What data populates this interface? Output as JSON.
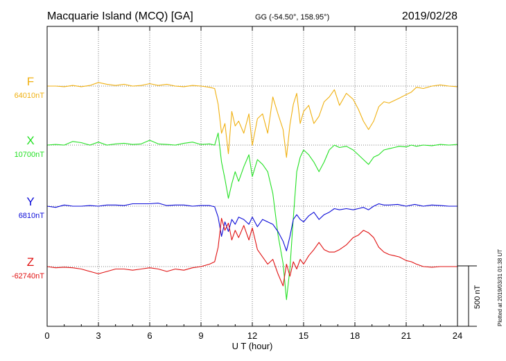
{
  "header": {
    "title": "Macquarie Island (MCQ)  [GA]",
    "coords": "GG (-54.50°, 158.95°)",
    "date": "2019/02/28"
  },
  "side_note": "Plotted at 2019/03/31 01:38 UT",
  "scale_bar": {
    "label": "500 nT",
    "nT": 500
  },
  "chart_data": {
    "type": "line",
    "title": "Macquarie Island (MCQ)  [GA]",
    "xlabel": "U T (hour)",
    "xlim": [
      0,
      24
    ],
    "xticks": [
      0,
      3,
      6,
      9,
      12,
      15,
      18,
      21,
      24
    ],
    "grid": true,
    "series": [
      {
        "name": "F",
        "baseline_label": "64010nT",
        "color": "#f0b010",
        "values": [
          [
            0,
            64010
          ],
          [
            0.5,
            64010
          ],
          [
            1,
            64005
          ],
          [
            1.5,
            64015
          ],
          [
            2,
            64005
          ],
          [
            2.5,
            64015
          ],
          [
            3,
            64040
          ],
          [
            3.5,
            64025
          ],
          [
            4,
            64015
          ],
          [
            4.5,
            64025
          ],
          [
            5,
            64010
          ],
          [
            5.5,
            64015
          ],
          [
            6,
            64030
          ],
          [
            6.5,
            64015
          ],
          [
            7,
            64025
          ],
          [
            7.5,
            64010
          ],
          [
            8,
            64005
          ],
          [
            8.5,
            64015
          ],
          [
            9,
            64010
          ],
          [
            9.5,
            64000
          ],
          [
            9.8,
            63990
          ],
          [
            10,
            63860
          ],
          [
            10.2,
            63620
          ],
          [
            10.4,
            63700
          ],
          [
            10.6,
            63450
          ],
          [
            10.8,
            63800
          ],
          [
            11,
            63680
          ],
          [
            11.2,
            63720
          ],
          [
            11.5,
            63620
          ],
          [
            11.8,
            63780
          ],
          [
            12,
            63520
          ],
          [
            12.3,
            63740
          ],
          [
            12.6,
            63780
          ],
          [
            12.9,
            63620
          ],
          [
            13.2,
            63920
          ],
          [
            13.5,
            63780
          ],
          [
            13.8,
            63650
          ],
          [
            14,
            63420
          ],
          [
            14.2,
            63690
          ],
          [
            14.4,
            63860
          ],
          [
            14.6,
            63950
          ],
          [
            14.8,
            63700
          ],
          [
            15,
            63800
          ],
          [
            15.3,
            63850
          ],
          [
            15.6,
            63700
          ],
          [
            15.9,
            63760
          ],
          [
            16.2,
            63880
          ],
          [
            16.5,
            63920
          ],
          [
            16.8,
            63980
          ],
          [
            17.1,
            63850
          ],
          [
            17.5,
            63950
          ],
          [
            17.9,
            63900
          ],
          [
            18.2,
            63820
          ],
          [
            18.5,
            63720
          ],
          [
            18.8,
            63650
          ],
          [
            19.1,
            63720
          ],
          [
            19.4,
            63840
          ],
          [
            19.7,
            63880
          ],
          [
            20,
            63870
          ],
          [
            20.3,
            63890
          ],
          [
            20.6,
            63910
          ],
          [
            21,
            63940
          ],
          [
            21.3,
            63960
          ],
          [
            21.6,
            64000
          ],
          [
            22,
            63990
          ],
          [
            22.5,
            64010
          ],
          [
            23,
            64020
          ],
          [
            23.5,
            64010
          ],
          [
            24,
            64005
          ]
        ]
      },
      {
        "name": "X",
        "baseline_label": "10700nT",
        "color": "#22e022",
        "values": [
          [
            0,
            10700
          ],
          [
            0.5,
            10705
          ],
          [
            1,
            10700
          ],
          [
            1.5,
            10730
          ],
          [
            2,
            10720
          ],
          [
            2.5,
            10700
          ],
          [
            3,
            10725
          ],
          [
            3.5,
            10700
          ],
          [
            4,
            10710
          ],
          [
            4.5,
            10715
          ],
          [
            5,
            10705
          ],
          [
            5.5,
            10710
          ],
          [
            6,
            10740
          ],
          [
            6.5,
            10710
          ],
          [
            7,
            10705
          ],
          [
            7.5,
            10700
          ],
          [
            8,
            10715
          ],
          [
            8.5,
            10725
          ],
          [
            9,
            10705
          ],
          [
            9.5,
            10710
          ],
          [
            9.8,
            10700
          ],
          [
            10,
            10800
          ],
          [
            10.2,
            10560
          ],
          [
            10.4,
            10420
          ],
          [
            10.6,
            10260
          ],
          [
            10.8,
            10380
          ],
          [
            11,
            10480
          ],
          [
            11.2,
            10400
          ],
          [
            11.5,
            10520
          ],
          [
            11.8,
            10620
          ],
          [
            12,
            10440
          ],
          [
            12.3,
            10580
          ],
          [
            12.6,
            10540
          ],
          [
            12.9,
            10480
          ],
          [
            13.2,
            10300
          ],
          [
            13.5,
            9960
          ],
          [
            13.8,
            9720
          ],
          [
            14,
            9420
          ],
          [
            14.2,
            9680
          ],
          [
            14.4,
            10100
          ],
          [
            14.6,
            10480
          ],
          [
            14.8,
            10600
          ],
          [
            15,
            10660
          ],
          [
            15.3,
            10620
          ],
          [
            15.6,
            10560
          ],
          [
            15.9,
            10480
          ],
          [
            16.2,
            10560
          ],
          [
            16.5,
            10660
          ],
          [
            16.8,
            10700
          ],
          [
            17.1,
            10680
          ],
          [
            17.5,
            10690
          ],
          [
            17.9,
            10660
          ],
          [
            18.2,
            10620
          ],
          [
            18.5,
            10580
          ],
          [
            18.8,
            10540
          ],
          [
            19.1,
            10600
          ],
          [
            19.4,
            10620
          ],
          [
            19.7,
            10660
          ],
          [
            20,
            10670
          ],
          [
            20.3,
            10680
          ],
          [
            20.6,
            10690
          ],
          [
            21,
            10685
          ],
          [
            21.3,
            10700
          ],
          [
            21.6,
            10690
          ],
          [
            22,
            10700
          ],
          [
            22.5,
            10695
          ],
          [
            23,
            10705
          ],
          [
            23.5,
            10700
          ],
          [
            24,
            10705
          ]
        ]
      },
      {
        "name": "Y",
        "baseline_label": "6810nT",
        "color": "#0a0ad8",
        "values": [
          [
            0,
            6810
          ],
          [
            0.5,
            6800
          ],
          [
            1,
            6820
          ],
          [
            1.5,
            6810
          ],
          [
            2,
            6810
          ],
          [
            2.5,
            6815
          ],
          [
            3,
            6810
          ],
          [
            3.5,
            6820
          ],
          [
            4,
            6820
          ],
          [
            4.5,
            6815
          ],
          [
            5,
            6830
          ],
          [
            5.5,
            6830
          ],
          [
            6,
            6830
          ],
          [
            6.5,
            6835
          ],
          [
            7,
            6815
          ],
          [
            7.5,
            6820
          ],
          [
            8,
            6820
          ],
          [
            8.5,
            6810
          ],
          [
            9,
            6815
          ],
          [
            9.5,
            6815
          ],
          [
            9.8,
            6805
          ],
          [
            10,
            6720
          ],
          [
            10.2,
            6560
          ],
          [
            10.4,
            6680
          ],
          [
            10.6,
            6600
          ],
          [
            10.8,
            6700
          ],
          [
            11,
            6660
          ],
          [
            11.2,
            6720
          ],
          [
            11.5,
            6700
          ],
          [
            11.8,
            6660
          ],
          [
            12,
            6720
          ],
          [
            12.3,
            6640
          ],
          [
            12.6,
            6700
          ],
          [
            12.9,
            6680
          ],
          [
            13.2,
            6660
          ],
          [
            13.5,
            6600
          ],
          [
            13.8,
            6520
          ],
          [
            14,
            6440
          ],
          [
            14.2,
            6560
          ],
          [
            14.4,
            6700
          ],
          [
            14.6,
            6740
          ],
          [
            14.8,
            6700
          ],
          [
            15,
            6680
          ],
          [
            15.3,
            6730
          ],
          [
            15.6,
            6760
          ],
          [
            15.9,
            6700
          ],
          [
            16.2,
            6740
          ],
          [
            16.5,
            6760
          ],
          [
            16.8,
            6790
          ],
          [
            17.1,
            6780
          ],
          [
            17.5,
            6790
          ],
          [
            17.9,
            6780
          ],
          [
            18.2,
            6790
          ],
          [
            18.5,
            6800
          ],
          [
            18.8,
            6780
          ],
          [
            19.1,
            6810
          ],
          [
            19.4,
            6830
          ],
          [
            19.7,
            6820
          ],
          [
            20,
            6820
          ],
          [
            20.5,
            6825
          ],
          [
            21,
            6810
          ],
          [
            21.5,
            6825
          ],
          [
            22,
            6810
          ],
          [
            22.5,
            6820
          ],
          [
            23,
            6815
          ],
          [
            23.5,
            6810
          ],
          [
            24,
            6810
          ]
        ]
      },
      {
        "name": "Z",
        "baseline_label": "-62740nT",
        "color": "#e01010",
        "values": [
          [
            0,
            -62740
          ],
          [
            0.5,
            -62750
          ],
          [
            1,
            -62745
          ],
          [
            1.5,
            -62750
          ],
          [
            2,
            -62760
          ],
          [
            2.5,
            -62780
          ],
          [
            3,
            -62800
          ],
          [
            3.5,
            -62780
          ],
          [
            4,
            -62760
          ],
          [
            4.5,
            -62760
          ],
          [
            5,
            -62770
          ],
          [
            5.5,
            -62760
          ],
          [
            6,
            -62750
          ],
          [
            6.5,
            -62760
          ],
          [
            7,
            -62780
          ],
          [
            7.5,
            -62760
          ],
          [
            8,
            -62770
          ],
          [
            8.5,
            -62750
          ],
          [
            9,
            -62740
          ],
          [
            9.5,
            -62720
          ],
          [
            9.8,
            -62700
          ],
          [
            10,
            -62580
          ],
          [
            10.2,
            -62340
          ],
          [
            10.4,
            -62440
          ],
          [
            10.6,
            -62380
          ],
          [
            10.8,
            -62520
          ],
          [
            11,
            -62440
          ],
          [
            11.2,
            -62500
          ],
          [
            11.5,
            -62400
          ],
          [
            11.8,
            -62520
          ],
          [
            12,
            -62420
          ],
          [
            12.3,
            -62600
          ],
          [
            12.6,
            -62660
          ],
          [
            12.9,
            -62720
          ],
          [
            13.2,
            -62680
          ],
          [
            13.5,
            -62800
          ],
          [
            13.8,
            -62900
          ],
          [
            14,
            -62720
          ],
          [
            14.2,
            -62820
          ],
          [
            14.4,
            -62700
          ],
          [
            14.6,
            -62760
          ],
          [
            14.8,
            -62680
          ],
          [
            15,
            -62720
          ],
          [
            15.3,
            -62650
          ],
          [
            15.6,
            -62600
          ],
          [
            15.9,
            -62540
          ],
          [
            16.2,
            -62600
          ],
          [
            16.5,
            -62620
          ],
          [
            16.8,
            -62620
          ],
          [
            17.1,
            -62600
          ],
          [
            17.5,
            -62560
          ],
          [
            17.9,
            -62500
          ],
          [
            18.2,
            -62480
          ],
          [
            18.5,
            -62440
          ],
          [
            18.8,
            -62460
          ],
          [
            19.1,
            -62500
          ],
          [
            19.4,
            -62580
          ],
          [
            19.7,
            -62620
          ],
          [
            20,
            -62640
          ],
          [
            20.3,
            -62650
          ],
          [
            20.6,
            -62660
          ],
          [
            21,
            -62690
          ],
          [
            21.3,
            -62700
          ],
          [
            21.6,
            -62720
          ],
          [
            22,
            -62740
          ],
          [
            22.5,
            -62745
          ],
          [
            23,
            -62740
          ],
          [
            23.5,
            -62740
          ],
          [
            24,
            -62740
          ]
        ]
      }
    ]
  }
}
